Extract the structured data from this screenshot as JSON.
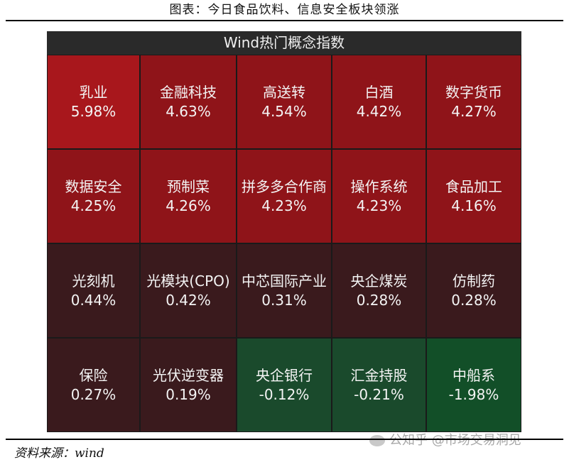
{
  "caption": "图表：今日食品饮料、信息安全板块领涨",
  "source": "资料来源：wind",
  "watermark": "公知乎 @市场交易洞见",
  "colors": {
    "strong_red": "#a8171c",
    "red": "#8f1419",
    "dark_red": "#3a1a1d",
    "green": "#1a4a2c",
    "strong_green": "#124f28"
  },
  "chart_data": {
    "type": "heatmap",
    "title": "Wind热门概念指数",
    "rows": 4,
    "cols": 5,
    "cells": [
      {
        "name": "乳业",
        "value": 5.98,
        "label": "5.98%"
      },
      {
        "name": "金融科技",
        "value": 4.63,
        "label": "4.63%"
      },
      {
        "name": "高送转",
        "value": 4.54,
        "label": "4.54%"
      },
      {
        "name": "白酒",
        "value": 4.42,
        "label": "4.42%"
      },
      {
        "name": "数字货币",
        "value": 4.27,
        "label": "4.27%"
      },
      {
        "name": "数据安全",
        "value": 4.25,
        "label": "4.25%"
      },
      {
        "name": "预制菜",
        "value": 4.26,
        "label": "4.26%"
      },
      {
        "name": "拼多多合作商",
        "value": 4.23,
        "label": "4.23%"
      },
      {
        "name": "操作系统",
        "value": 4.23,
        "label": "4.23%"
      },
      {
        "name": "食品加工",
        "value": 4.16,
        "label": "4.16%"
      },
      {
        "name": "光刻机",
        "value": 0.44,
        "label": "0.44%"
      },
      {
        "name": "光模块(CPO)",
        "value": 0.42,
        "label": "0.42%"
      },
      {
        "name": "中芯国际产业",
        "value": 0.31,
        "label": "0.31%"
      },
      {
        "name": "央企煤炭",
        "value": 0.28,
        "label": "0.28%"
      },
      {
        "name": "仿制药",
        "value": 0.28,
        "label": "0.28%"
      },
      {
        "name": "保险",
        "value": 0.27,
        "label": "0.27%"
      },
      {
        "name": "光伏逆变器",
        "value": 0.19,
        "label": "0.19%"
      },
      {
        "name": "央企银行",
        "value": -0.12,
        "label": "-0.12%"
      },
      {
        "name": "汇金持股",
        "value": -0.21,
        "label": "-0.21%"
      },
      {
        "name": "中船系",
        "value": -1.98,
        "label": "-1.98%"
      }
    ]
  }
}
